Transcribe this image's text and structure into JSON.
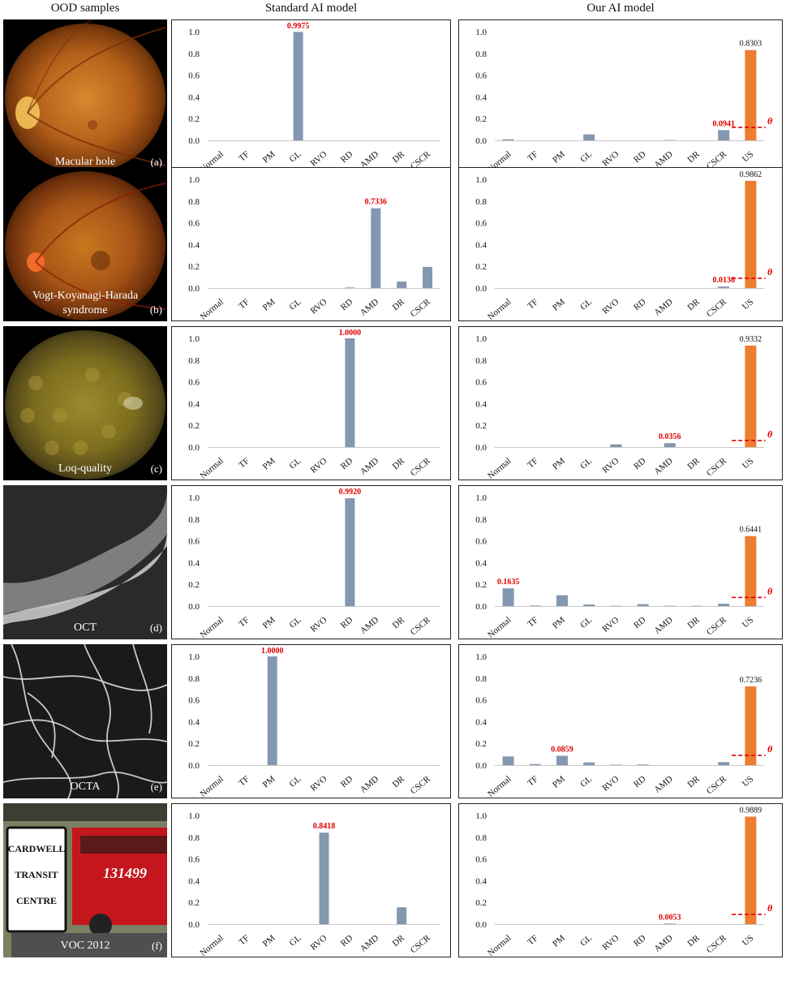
{
  "headers": {
    "samples": "OOD samples",
    "standard": "Standard AI model",
    "ours": "Our AI model"
  },
  "colors": {
    "bar": "#8497b0",
    "unknown_bar": "#ed7d31",
    "threshold": "#e00000",
    "highlight_label": "#e00000"
  },
  "threshold_label": "θ",
  "rows": [
    {
      "sample": {
        "label": "Macular hole",
        "letter": "(a)",
        "kind": "fundus-a"
      },
      "standard": {
        "chart_data": {
          "type": "bar",
          "categories": [
            "Normal",
            "TF",
            "PM",
            "GL",
            "RVO",
            "RD",
            "AMD",
            "DR",
            "CSCR"
          ],
          "values": [
            0.0,
            0.0,
            0.0,
            0.9975,
            0.0,
            0.0,
            0.0,
            0.0,
            0.0
          ],
          "ylim": [
            0,
            1.0
          ],
          "yticks": [
            "0.0",
            "0.2",
            "0.4",
            "0.6",
            "0.8",
            "1.0"
          ],
          "highlight": {
            "index": 3,
            "label": "0.9975"
          }
        }
      },
      "ours": {
        "chart_data": {
          "type": "bar",
          "categories": [
            "Normal",
            "TF",
            "PM",
            "GL",
            "RVO",
            "RD",
            "AMD",
            "DR",
            "CSCR",
            "US"
          ],
          "values": [
            0.01,
            0.0,
            0.0,
            0.055,
            0.0,
            0.0,
            0.003,
            0.0,
            0.0941,
            0.8303
          ],
          "ylim": [
            0,
            1.0
          ],
          "yticks": [
            "0.0",
            "0.2",
            "0.4",
            "0.6",
            "0.8",
            "1.0"
          ],
          "threshold": 0.12,
          "highlight": {
            "index": 8,
            "label": "0.0941"
          },
          "us_label": "0.8303"
        }
      }
    },
    {
      "sample": {
        "label": "Vogt-Koyanagi-Harada syndrome",
        "letter": "(b)",
        "kind": "fundus-b"
      },
      "standard": {
        "chart_data": {
          "type": "bar",
          "categories": [
            "Normal",
            "TF",
            "PM",
            "GL",
            "RVO",
            "RD",
            "AMD",
            "DR",
            "CSCR"
          ],
          "values": [
            0.0,
            0.0,
            0.0,
            0.0,
            0.0,
            0.005,
            0.7336,
            0.06,
            0.195
          ],
          "ylim": [
            0,
            1.0
          ],
          "yticks": [
            "0.0",
            "0.2",
            "0.4",
            "0.6",
            "0.8",
            "1.0"
          ],
          "highlight": {
            "index": 6,
            "label": "0.7336"
          }
        }
      },
      "ours": {
        "chart_data": {
          "type": "bar",
          "categories": [
            "Normal",
            "TF",
            "PM",
            "GL",
            "RVO",
            "RD",
            "AMD",
            "DR",
            "CSCR",
            "US"
          ],
          "values": [
            0.0,
            0.0,
            0.0,
            0.0,
            0.0,
            0.0,
            0.0,
            0.0,
            0.0136,
            0.9862
          ],
          "ylim": [
            0,
            1.0
          ],
          "yticks": [
            "0.0",
            "0.2",
            "0.4",
            "0.6",
            "0.8",
            "1.0"
          ],
          "threshold": 0.09,
          "highlight": {
            "index": 8,
            "label": "0.0136"
          },
          "us_label": "0.9862"
        }
      }
    },
    {
      "sample": {
        "label": "Loq-quality",
        "letter": "(c)",
        "kind": "fundus-c"
      },
      "standard": {
        "chart_data": {
          "type": "bar",
          "categories": [
            "Normal",
            "TF",
            "PM",
            "GL",
            "RVO",
            "RD",
            "AMD",
            "DR",
            "CSCR"
          ],
          "values": [
            0.0,
            0.0,
            0.0,
            0.0,
            0.0,
            1.0,
            0.0,
            0.0,
            0.0
          ],
          "ylim": [
            0,
            1.0
          ],
          "yticks": [
            "0.0",
            "0.2",
            "0.4",
            "0.6",
            "0.8",
            "1.0"
          ],
          "highlight": {
            "index": 5,
            "label": "1.0000"
          }
        }
      },
      "ours": {
        "chart_data": {
          "type": "bar",
          "categories": [
            "Normal",
            "TF",
            "PM",
            "GL",
            "RVO",
            "RD",
            "AMD",
            "DR",
            "CSCR",
            "US"
          ],
          "values": [
            0.0,
            0.0,
            0.0,
            0.0,
            0.025,
            0.0,
            0.0356,
            0.0,
            0.0,
            0.9332
          ],
          "ylim": [
            0,
            1.0
          ],
          "yticks": [
            "0.0",
            "0.2",
            "0.4",
            "0.6",
            "0.8",
            "1.0"
          ],
          "threshold": 0.06,
          "highlight": {
            "index": 6,
            "label": "0.0356"
          },
          "us_label": "0.9332"
        }
      }
    },
    {
      "sample": {
        "label": "OCT",
        "letter": "(d)",
        "kind": "oct"
      },
      "standard": {
        "chart_data": {
          "type": "bar",
          "categories": [
            "Normal",
            "TF",
            "PM",
            "GL",
            "RVO",
            "RD",
            "AMD",
            "DR",
            "CSCR"
          ],
          "values": [
            0.0,
            0.0,
            0.0,
            0.0,
            0.0,
            0.992,
            0.0,
            0.0,
            0.0
          ],
          "ylim": [
            0,
            1.0
          ],
          "yticks": [
            "0.0",
            "0.2",
            "0.4",
            "0.6",
            "0.8",
            "1.0"
          ],
          "highlight": {
            "index": 5,
            "label": "0.9920"
          }
        }
      },
      "ours": {
        "chart_data": {
          "type": "bar",
          "categories": [
            "Normal",
            "TF",
            "PM",
            "GL",
            "RVO",
            "RD",
            "AMD",
            "DR",
            "CSCR",
            "US"
          ],
          "values": [
            0.1635,
            0.005,
            0.1,
            0.015,
            0.003,
            0.018,
            0.003,
            0.003,
            0.022,
            0.6441
          ],
          "ylim": [
            0,
            1.0
          ],
          "yticks": [
            "0.0",
            "0.2",
            "0.4",
            "0.6",
            "0.8",
            "1.0"
          ],
          "threshold": 0.08,
          "highlight": {
            "index": 0,
            "label": "0.1635"
          },
          "us_label": "0.6441"
        }
      }
    },
    {
      "sample": {
        "label": "OCTA",
        "letter": "(e)",
        "kind": "octa"
      },
      "standard": {
        "chart_data": {
          "type": "bar",
          "categories": [
            "Normal",
            "TF",
            "PM",
            "GL",
            "RVO",
            "RD",
            "AMD",
            "DR",
            "CSCR"
          ],
          "values": [
            0.0,
            0.0,
            1.0,
            0.0,
            0.0,
            0.0,
            0.0,
            0.0,
            0.0
          ],
          "ylim": [
            0,
            1.0
          ],
          "yticks": [
            "0.0",
            "0.2",
            "0.4",
            "0.6",
            "0.8",
            "1.0"
          ],
          "highlight": {
            "index": 2,
            "label": "1.0000"
          }
        }
      },
      "ours": {
        "chart_data": {
          "type": "bar",
          "categories": [
            "Normal",
            "TF",
            "PM",
            "GL",
            "RVO",
            "RD",
            "AMD",
            "DR",
            "CSCR",
            "US"
          ],
          "values": [
            0.08,
            0.01,
            0.0859,
            0.025,
            0.004,
            0.006,
            0.0,
            0.0,
            0.028,
            0.7236
          ],
          "ylim": [
            0,
            1.0
          ],
          "yticks": [
            "0.0",
            "0.2",
            "0.4",
            "0.6",
            "0.8",
            "1.0"
          ],
          "threshold": 0.09,
          "highlight": {
            "index": 2,
            "label": "0.0859"
          },
          "us_label": "0.7236"
        }
      }
    },
    {
      "sample": {
        "label": "VOC 2012",
        "letter": "(f)",
        "kind": "photo",
        "sign": [
          "CARDWELL",
          "TRANSIT",
          "CENTRE"
        ],
        "bus_number": "131499"
      },
      "standard": {
        "chart_data": {
          "type": "bar",
          "categories": [
            "Normal",
            "TF",
            "PM",
            "GL",
            "RVO",
            "RD",
            "AMD",
            "DR",
            "CSCR"
          ],
          "values": [
            0.0,
            0.0,
            0.0,
            0.0,
            0.8418,
            0.0,
            0.0,
            0.155,
            0.0
          ],
          "ylim": [
            0,
            1.0
          ],
          "yticks": [
            "0.0",
            "0.2",
            "0.4",
            "0.6",
            "0.8",
            "1.0"
          ],
          "highlight": {
            "index": 4,
            "label": "0.8418"
          }
        }
      },
      "ours": {
        "chart_data": {
          "type": "bar",
          "categories": [
            "Normal",
            "TF",
            "PM",
            "GL",
            "RVO",
            "RD",
            "AMD",
            "DR",
            "CSCR",
            "US"
          ],
          "values": [
            0.0,
            0.0,
            0.0,
            0.0,
            0.0,
            0.0,
            0.0053,
            0.0,
            0.0,
            0.9889
          ],
          "ylim": [
            0,
            1.0
          ],
          "yticks": [
            "0.0",
            "0.2",
            "0.4",
            "0.6",
            "0.8",
            "1.0"
          ],
          "threshold": 0.09,
          "highlight": {
            "index": 6,
            "label": "0.0053"
          },
          "us_label": "0.9889"
        }
      }
    }
  ]
}
